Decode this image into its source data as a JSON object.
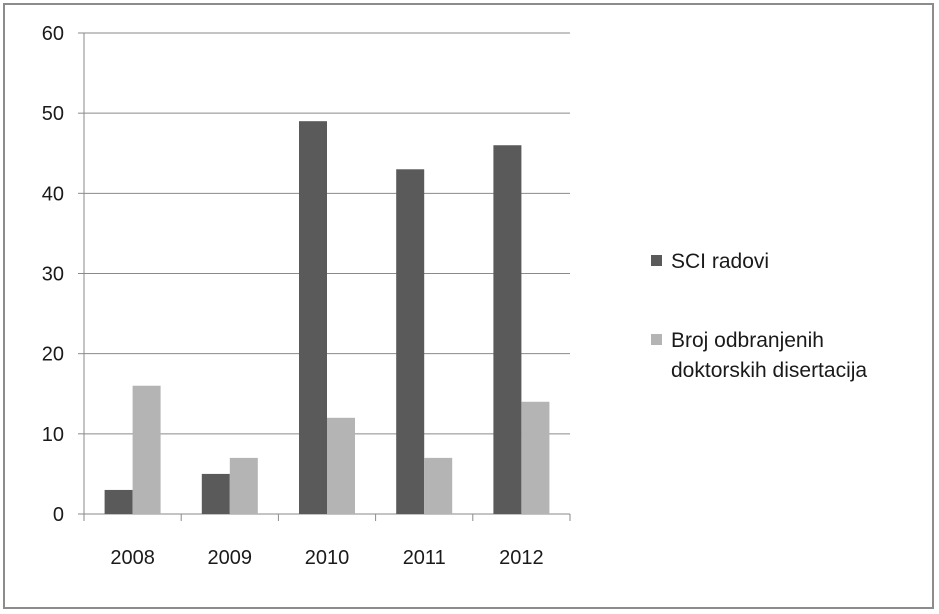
{
  "chart_data": {
    "type": "bar",
    "categories": [
      "2008",
      "2009",
      "2010",
      "2011",
      "2012"
    ],
    "series": [
      {
        "name": "SCI radovi",
        "values": [
          3,
          5,
          49,
          43,
          46
        ],
        "color": "#5a5a5a"
      },
      {
        "name": "Broj odbranjenih doktorskih disertacija",
        "values": [
          16,
          7,
          12,
          7,
          14
        ],
        "color": "#b4b4b4"
      }
    ],
    "legend_lines": [
      [
        "SCI radovi"
      ],
      [
        "Broj odbranjenih",
        "doktorskih disertacija"
      ]
    ],
    "ylim": [
      0,
      60
    ],
    "yticks": [
      0,
      10,
      20,
      30,
      40,
      50,
      60
    ],
    "grid": true,
    "legend_position": "right",
    "title": "",
    "xlabel": "",
    "ylabel": ""
  }
}
